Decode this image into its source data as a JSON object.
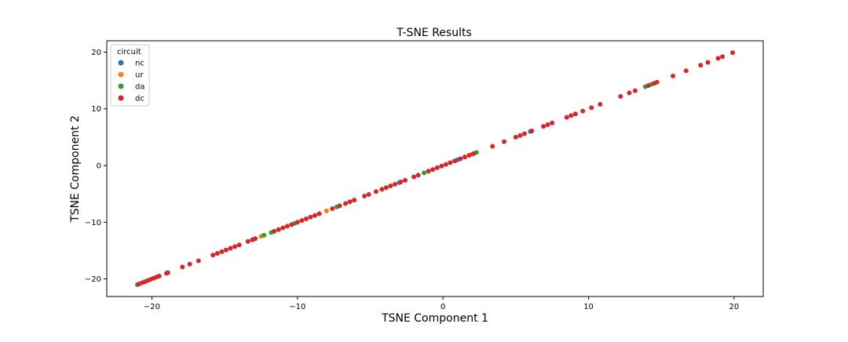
{
  "chart_data": {
    "type": "scatter",
    "title": "T-SNE Results",
    "xlabel": "TSNE Component 1",
    "ylabel": "TSNE Component 2",
    "xlim": [
      -23.1,
      22.0
    ],
    "ylim": [
      -23.1,
      22.0
    ],
    "xticks": [
      -20,
      -10,
      0,
      10,
      20
    ],
    "yticks": [
      -20,
      -10,
      0,
      10,
      20
    ],
    "tick_labels_x": [
      "−20",
      "−10",
      "0",
      "10",
      "20"
    ],
    "tick_labels_y": [
      "−20",
      "−10",
      "0",
      "10",
      "20"
    ],
    "grid": false,
    "legend": {
      "title": "circuit",
      "placement": "upper-left",
      "entries": [
        "nc",
        "ur",
        "da",
        "dc"
      ]
    },
    "series": [
      {
        "name": "nc",
        "color": "#1f77b4",
        "points": [
          [
            -3.0,
            -3.0
          ],
          [
            1.0,
            1.0
          ],
          [
            6.0,
            6.0
          ]
        ]
      },
      {
        "name": "ur",
        "color": "#ff7f0e",
        "points": [
          [
            -8.0,
            -8.0
          ],
          [
            -1.0,
            -1.0
          ],
          [
            -12.5,
            -12.5
          ],
          [
            2.0,
            2.0
          ]
        ]
      },
      {
        "name": "da",
        "color": "#2ca02c",
        "points": [
          [
            -21.0,
            -21.0
          ],
          [
            -12.3,
            -12.3
          ],
          [
            -11.8,
            -11.8
          ],
          [
            -10.2,
            -10.2
          ],
          [
            -7.3,
            -7.3
          ],
          [
            -1.3,
            -1.3
          ],
          [
            2.3,
            2.3
          ],
          [
            13.9,
            13.9
          ],
          [
            14.3,
            14.3
          ]
        ]
      },
      {
        "name": "dc",
        "color": "#d62728",
        "points": [
          [
            -20.9,
            -20.9
          ],
          [
            -20.7,
            -20.7
          ],
          [
            -20.5,
            -20.5
          ],
          [
            -20.3,
            -20.3
          ],
          [
            -20.1,
            -20.1
          ],
          [
            -19.9,
            -19.9
          ],
          [
            -19.7,
            -19.7
          ],
          [
            -19.5,
            -19.5
          ],
          [
            -19.0,
            -19.0
          ],
          [
            -18.9,
            -18.9
          ],
          [
            -17.9,
            -17.9
          ],
          [
            -17.4,
            -17.4
          ],
          [
            -16.8,
            -16.8
          ],
          [
            -15.8,
            -15.8
          ],
          [
            -15.5,
            -15.5
          ],
          [
            -15.2,
            -15.2
          ],
          [
            -14.9,
            -14.9
          ],
          [
            -14.6,
            -14.6
          ],
          [
            -14.3,
            -14.3
          ],
          [
            -14.0,
            -14.0
          ],
          [
            -13.4,
            -13.4
          ],
          [
            -13.1,
            -13.1
          ],
          [
            -12.9,
            -12.9
          ],
          [
            -11.6,
            -11.6
          ],
          [
            -11.3,
            -11.3
          ],
          [
            -11.0,
            -11.0
          ],
          [
            -10.7,
            -10.7
          ],
          [
            -10.4,
            -10.4
          ],
          [
            -10.0,
            -10.0
          ],
          [
            -9.7,
            -9.7
          ],
          [
            -9.4,
            -9.4
          ],
          [
            -9.1,
            -9.1
          ],
          [
            -8.8,
            -8.8
          ],
          [
            -8.5,
            -8.5
          ],
          [
            -7.6,
            -7.6
          ],
          [
            -7.1,
            -7.1
          ],
          [
            -6.7,
            -6.7
          ],
          [
            -6.4,
            -6.4
          ],
          [
            -6.1,
            -6.1
          ],
          [
            -5.4,
            -5.4
          ],
          [
            -5.1,
            -5.1
          ],
          [
            -4.6,
            -4.6
          ],
          [
            -4.2,
            -4.2
          ],
          [
            -3.9,
            -3.9
          ],
          [
            -3.6,
            -3.6
          ],
          [
            -3.3,
            -3.3
          ],
          [
            -2.9,
            -2.9
          ],
          [
            -2.6,
            -2.6
          ],
          [
            -2.0,
            -2.0
          ],
          [
            -1.7,
            -1.7
          ],
          [
            -1.0,
            -1.0
          ],
          [
            -0.7,
            -0.7
          ],
          [
            -0.4,
            -0.4
          ],
          [
            -0.1,
            -0.1
          ],
          [
            0.2,
            0.2
          ],
          [
            0.5,
            0.5
          ],
          [
            0.8,
            0.8
          ],
          [
            1.2,
            1.2
          ],
          [
            1.5,
            1.5
          ],
          [
            1.8,
            1.8
          ],
          [
            2.1,
            2.1
          ],
          [
            3.4,
            3.4
          ],
          [
            4.2,
            4.2
          ],
          [
            5.0,
            5.0
          ],
          [
            5.3,
            5.3
          ],
          [
            5.6,
            5.6
          ],
          [
            6.1,
            6.1
          ],
          [
            6.9,
            6.9
          ],
          [
            7.2,
            7.2
          ],
          [
            7.5,
            7.5
          ],
          [
            8.5,
            8.5
          ],
          [
            8.8,
            8.8
          ],
          [
            9.1,
            9.1
          ],
          [
            9.6,
            9.6
          ],
          [
            10.2,
            10.2
          ],
          [
            10.8,
            10.8
          ],
          [
            12.2,
            12.2
          ],
          [
            12.8,
            12.8
          ],
          [
            13.2,
            13.2
          ],
          [
            14.1,
            14.1
          ],
          [
            14.5,
            14.5
          ],
          [
            14.7,
            14.7
          ],
          [
            15.8,
            15.8
          ],
          [
            16.7,
            16.7
          ],
          [
            17.7,
            17.7
          ],
          [
            18.2,
            18.2
          ],
          [
            18.9,
            18.9
          ],
          [
            19.2,
            19.2
          ],
          [
            19.9,
            19.9
          ]
        ]
      }
    ]
  }
}
